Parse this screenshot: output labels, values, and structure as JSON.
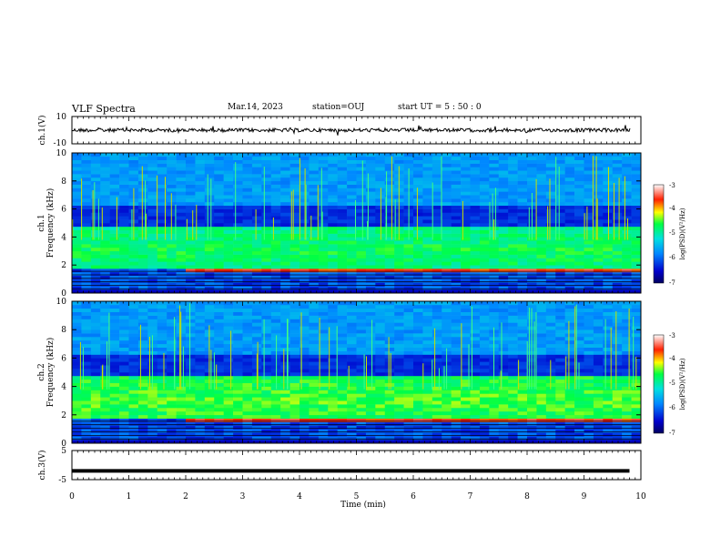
{
  "header": {
    "title": "VLF Spectra",
    "date": "Mar.14, 2023",
    "station": "station=OUJ",
    "start": "start  UT =  5 : 50 : 0"
  },
  "chart_data": [
    {
      "type": "line",
      "ylabel": "ch.1(V)",
      "ylim": [
        -10,
        10
      ],
      "yticks": [
        "10",
        "-10"
      ],
      "description_value": "waveform centered near 0 V",
      "xlim": [
        0,
        10
      ]
    },
    {
      "type": "heatmap",
      "ylabel": "ch.1\nFrequency (kHz)",
      "ylabel_lines": [
        "ch.1",
        "Frequency (kHz)"
      ],
      "ylim": [
        0,
        10
      ],
      "yticks": [
        "0",
        "2",
        "4",
        "6",
        "8",
        "10"
      ],
      "xlim": [
        0,
        10
      ],
      "colorbar": {
        "label": "log(PSD)(V²/Hz)",
        "range": [
          -7,
          -3
        ],
        "ticks": [
          "-3",
          "-4",
          "-5",
          "-6",
          "-7"
        ]
      }
    },
    {
      "type": "heatmap",
      "ylabel": "ch.2\nFrequency (kHz)",
      "ylabel_lines": [
        "ch.2",
        "Frequency (kHz)"
      ],
      "ylim": [
        0,
        10
      ],
      "yticks": [
        "0",
        "2",
        "4",
        "6",
        "8",
        "10"
      ],
      "xlim": [
        0,
        10
      ],
      "colorbar": {
        "label": "log(PSD)(V²/Hz)",
        "range": [
          -7,
          -3
        ],
        "ticks": [
          "-3",
          "-4",
          "-5",
          "-6",
          "-7"
        ]
      }
    },
    {
      "type": "line",
      "ylabel": "ch.3(V)",
      "ylim": [
        -5,
        5
      ],
      "yticks": [
        "5",
        "-5"
      ],
      "xlim": [
        0,
        10
      ],
      "x": [
        0,
        9.8
      ],
      "y": [
        -2,
        -2
      ]
    }
  ],
  "xaxis": {
    "label": "Time (min)",
    "ticks": [
      "0",
      "1",
      "2",
      "3",
      "4",
      "5",
      "6",
      "7",
      "8",
      "9",
      "10"
    ],
    "range": [
      0,
      10
    ]
  },
  "colors": {
    "axis": "#000000",
    "background": "#ffffff"
  }
}
